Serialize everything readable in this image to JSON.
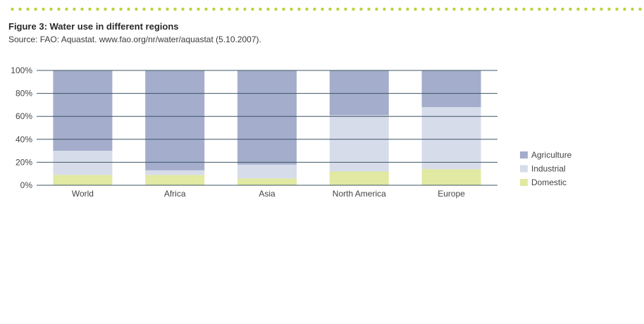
{
  "header": {
    "title": "Figure 3: Water use in different regions",
    "source": "Source: FAO: Aquastat. www.fao.org/nr/water/aquastat (5.10.2007)."
  },
  "colors": {
    "agriculture": "#a4adcb",
    "industrial": "#d7dcea",
    "domestic": "#e1e9a2",
    "grid": "#3d5566",
    "accent_dots": "#bcd33a"
  },
  "chart_data": {
    "type": "bar",
    "stacked": true,
    "categories": [
      "World",
      "Africa",
      "Asia",
      "North America",
      "Europe"
    ],
    "series": [
      {
        "name": "Domestic",
        "values": [
          9,
          9,
          6,
          12,
          14
        ]
      },
      {
        "name": "Industrial",
        "values": [
          21,
          4,
          12,
          49,
          54
        ]
      },
      {
        "name": "Agriculture",
        "values": [
          70,
          87,
          82,
          39,
          32
        ]
      }
    ],
    "yticks": [
      "0%",
      "20%",
      "40%",
      "60%",
      "80%",
      "100%"
    ],
    "ylim": [
      0,
      100
    ],
    "grid": true,
    "legend_position": "right",
    "legend": [
      "Agriculture",
      "Industrial",
      "Domestic"
    ]
  }
}
